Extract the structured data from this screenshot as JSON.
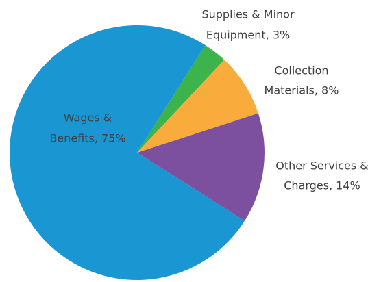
{
  "chart_data": {
    "type": "pie",
    "categories": [
      "Supplies & Minor Equipment",
      "Collection Materials",
      "Other Services & Charges",
      "Wages & Benefits"
    ],
    "labels": [
      [
        "Supplies & Minor",
        "Equipment, 3%"
      ],
      [
        "Collection",
        "Materials, 8%"
      ],
      [
        "Other Services &",
        "Charges, 14%"
      ],
      [
        "Wages &",
        "Benefits, 75%"
      ]
    ],
    "values": [
      3,
      8,
      14,
      75
    ],
    "colors": [
      "#3cb44b",
      "#f9ab3b",
      "#7d509f",
      "#1a96d2"
    ]
  }
}
